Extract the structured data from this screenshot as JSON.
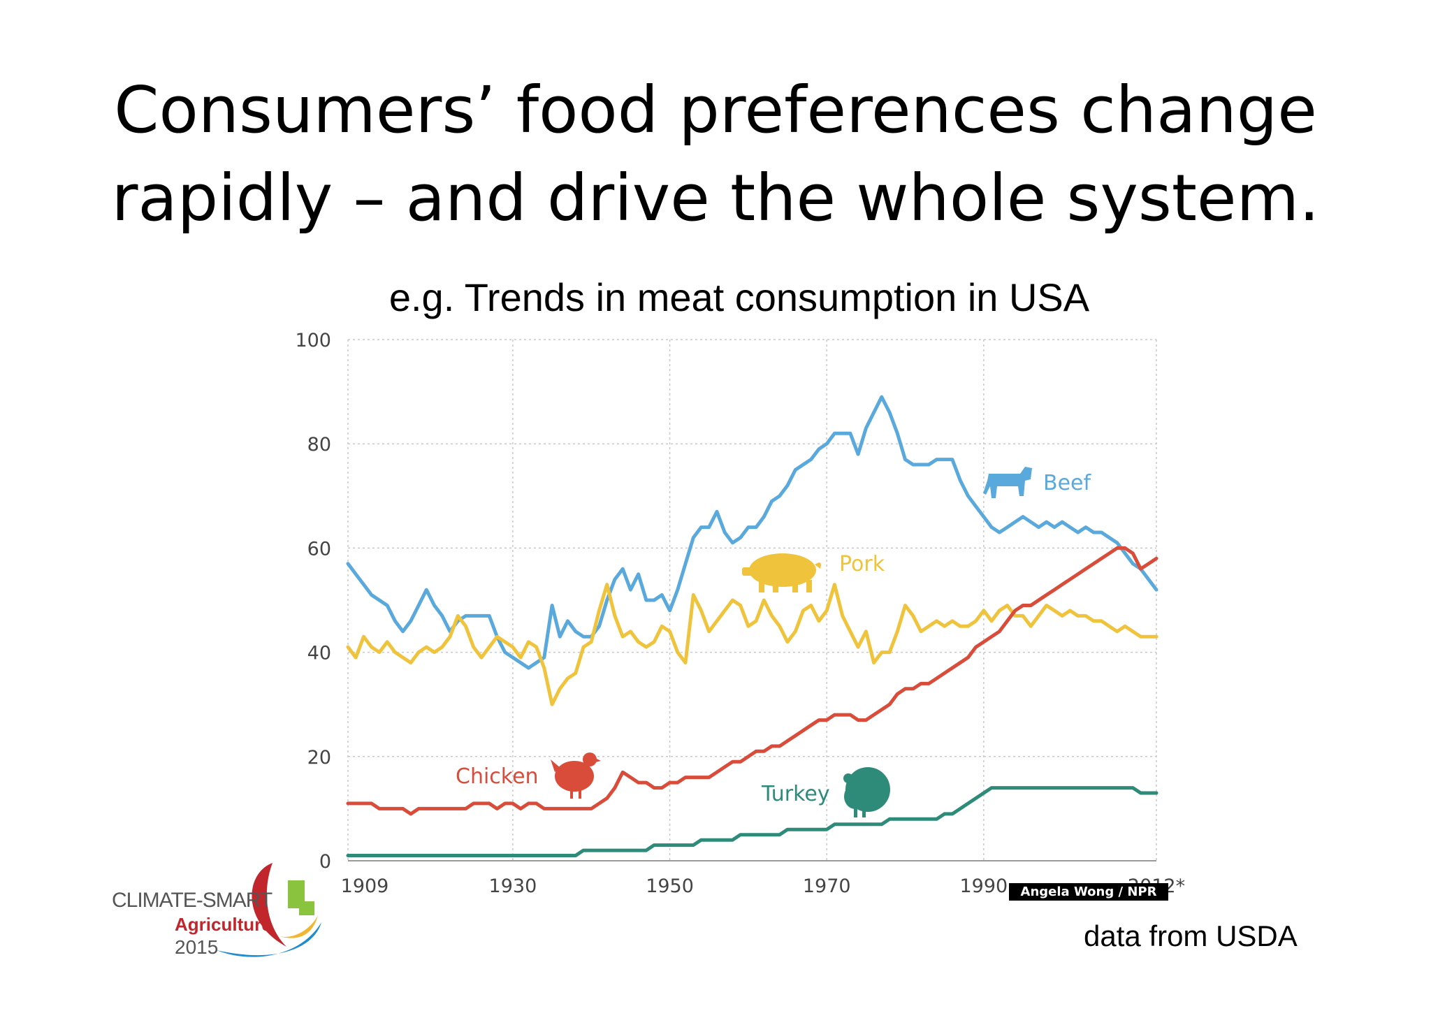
{
  "slide": {
    "title_line1": "Consumers’ food preferences change",
    "title_line2": "rapidly – and drive the whole system.",
    "subtitle": "e.g. Trends in meat consumption in USA",
    "source": "data from USDA",
    "credit": "Angela Wong / NPR",
    "logo": {
      "line1": "CLIMATE-SMART",
      "line2": "Agriculture",
      "line3": "2015"
    }
  },
  "chart_data": {
    "type": "line",
    "title": "",
    "xlabel": "",
    "ylabel": "",
    "xlim": [
      1909,
      2012
    ],
    "ylim": [
      0,
      100
    ],
    "yticks": [
      0,
      20,
      40,
      60,
      80,
      100
    ],
    "xticks": [
      "1909",
      "1930",
      "1950",
      "1970",
      "1990",
      "2012*"
    ],
    "grid": true,
    "x": [
      1909,
      1910,
      1911,
      1912,
      1913,
      1914,
      1915,
      1916,
      1917,
      1918,
      1919,
      1920,
      1921,
      1922,
      1923,
      1924,
      1925,
      1926,
      1927,
      1928,
      1929,
      1930,
      1931,
      1932,
      1933,
      1934,
      1935,
      1936,
      1937,
      1938,
      1939,
      1940,
      1941,
      1942,
      1943,
      1944,
      1945,
      1946,
      1947,
      1948,
      1949,
      1950,
      1951,
      1952,
      1953,
      1954,
      1955,
      1956,
      1957,
      1958,
      1959,
      1960,
      1961,
      1962,
      1963,
      1964,
      1965,
      1966,
      1967,
      1968,
      1969,
      1970,
      1971,
      1972,
      1973,
      1974,
      1975,
      1976,
      1977,
      1978,
      1979,
      1980,
      1981,
      1982,
      1983,
      1984,
      1985,
      1986,
      1987,
      1988,
      1989,
      1990,
      1991,
      1992,
      1993,
      1994,
      1995,
      1996,
      1997,
      1998,
      1999,
      2000,
      2001,
      2002,
      2003,
      2004,
      2005,
      2006,
      2007,
      2008,
      2009,
      2010,
      2011,
      2012
    ],
    "series": [
      {
        "name": "Beef",
        "color": "#5aa9dc",
        "values": [
          57,
          55,
          53,
          51,
          50,
          49,
          46,
          44,
          46,
          49,
          52,
          49,
          47,
          44,
          46,
          47,
          47,
          47,
          47,
          43,
          40,
          39,
          38,
          37,
          38,
          39,
          49,
          43,
          46,
          44,
          43,
          43,
          45,
          50,
          54,
          56,
          52,
          55,
          50,
          50,
          51,
          48,
          52,
          57,
          62,
          64,
          64,
          67,
          63,
          61,
          62,
          64,
          64,
          66,
          69,
          70,
          72,
          75,
          76,
          77,
          79,
          80,
          82,
          82,
          82,
          78,
          83,
          86,
          89,
          86,
          82,
          77,
          76,
          76,
          76,
          77,
          77,
          77,
          73,
          70,
          68,
          66,
          64,
          63,
          64,
          65,
          66,
          65,
          64,
          65,
          64,
          65,
          64,
          63,
          64,
          63,
          63,
          62,
          61,
          59,
          57,
          56,
          54,
          52
        ]
      },
      {
        "name": "Pork",
        "color": "#f0c33c",
        "values": [
          41,
          39,
          43,
          41,
          40,
          42,
          40,
          39,
          38,
          40,
          41,
          40,
          41,
          43,
          47,
          45,
          41,
          39,
          41,
          43,
          42,
          41,
          39,
          42,
          41,
          37,
          30,
          33,
          35,
          36,
          41,
          42,
          48,
          53,
          47,
          43,
          44,
          42,
          41,
          42,
          45,
          44,
          40,
          38,
          51,
          48,
          44,
          46,
          48,
          50,
          49,
          45,
          46,
          50,
          47,
          45,
          42,
          44,
          48,
          49,
          46,
          48,
          53,
          47,
          44,
          41,
          44,
          38,
          40,
          40,
          44,
          49,
          47,
          44,
          45,
          46,
          45,
          46,
          45,
          45,
          46,
          48,
          46,
          48,
          49,
          47,
          47,
          45,
          47,
          49,
          48,
          47,
          48,
          47,
          47,
          46,
          46,
          45,
          44,
          45,
          44,
          43,
          43,
          43
        ]
      },
      {
        "name": "Chicken",
        "color": "#d94c3a",
        "values": [
          11,
          11,
          11,
          11,
          10,
          10,
          10,
          10,
          9,
          10,
          10,
          10,
          10,
          10,
          10,
          10,
          11,
          11,
          11,
          10,
          11,
          11,
          10,
          11,
          11,
          10,
          10,
          10,
          10,
          10,
          10,
          10,
          11,
          12,
          14,
          17,
          16,
          15,
          15,
          14,
          14,
          15,
          15,
          16,
          16,
          16,
          16,
          17,
          18,
          19,
          19,
          20,
          21,
          21,
          22,
          22,
          23,
          24,
          25,
          26,
          27,
          27,
          28,
          28,
          28,
          27,
          27,
          28,
          29,
          30,
          32,
          33,
          33,
          34,
          34,
          35,
          36,
          37,
          38,
          39,
          41,
          42,
          43,
          44,
          46,
          48,
          49,
          49,
          50,
          51,
          52,
          53,
          54,
          55,
          56,
          57,
          58,
          59,
          60,
          60,
          59,
          56,
          57,
          58
        ]
      },
      {
        "name": "Turkey",
        "color": "#2e8b7a",
        "values": [
          1,
          1,
          1,
          1,
          1,
          1,
          1,
          1,
          1,
          1,
          1,
          1,
          1,
          1,
          1,
          1,
          1,
          1,
          1,
          1,
          1,
          1,
          1,
          1,
          1,
          1,
          1,
          1,
          1,
          1,
          2,
          2,
          2,
          2,
          2,
          2,
          2,
          2,
          2,
          3,
          3,
          3,
          3,
          3,
          3,
          4,
          4,
          4,
          4,
          4,
          5,
          5,
          5,
          5,
          5,
          5,
          6,
          6,
          6,
          6,
          6,
          6,
          7,
          7,
          7,
          7,
          7,
          7,
          7,
          8,
          8,
          8,
          8,
          8,
          8,
          8,
          9,
          9,
          10,
          11,
          12,
          13,
          14,
          14,
          14,
          14,
          14,
          14,
          14,
          14,
          14,
          14,
          14,
          14,
          14,
          14,
          14,
          14,
          14,
          14,
          14,
          13,
          13,
          13
        ]
      }
    ],
    "labels": {
      "beef": "Beef",
      "pork": "Pork",
      "chicken": "Chicken",
      "turkey": "Turkey"
    }
  }
}
